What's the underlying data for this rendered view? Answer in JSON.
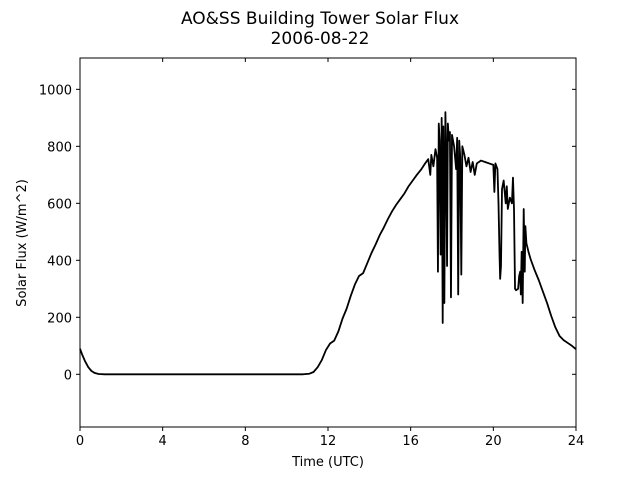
{
  "chart_data": {
    "type": "line",
    "title": "AO&SS Building Tower Solar Flux",
    "subtitle": "2006-08-22",
    "xlabel": "Time (UTC)",
    "ylabel": "Solar Flux (W/m^2)",
    "xlim": [
      0,
      24
    ],
    "ylim": [
      -185,
      1110
    ],
    "xticks": [
      0,
      4,
      8,
      12,
      16,
      20,
      24
    ],
    "yticks": [
      0,
      200,
      400,
      600,
      800,
      1000
    ],
    "grid": false,
    "series": [
      {
        "color": "#000000",
        "points": [
          [
            0,
            90
          ],
          [
            0.1,
            70
          ],
          [
            0.25,
            45
          ],
          [
            0.4,
            25
          ],
          [
            0.55,
            12
          ],
          [
            0.7,
            5
          ],
          [
            0.9,
            1
          ],
          [
            1.2,
            0
          ],
          [
            4,
            0
          ],
          [
            8,
            0
          ],
          [
            10.8,
            0
          ],
          [
            11.1,
            2
          ],
          [
            11.3,
            8
          ],
          [
            11.5,
            25
          ],
          [
            11.7,
            50
          ],
          [
            11.9,
            85
          ],
          [
            12.1,
            108
          ],
          [
            12.3,
            118
          ],
          [
            12.5,
            150
          ],
          [
            12.7,
            195
          ],
          [
            12.9,
            230
          ],
          [
            13.1,
            275
          ],
          [
            13.3,
            315
          ],
          [
            13.5,
            345
          ],
          [
            13.7,
            355
          ],
          [
            13.9,
            390
          ],
          [
            14.1,
            425
          ],
          [
            14.3,
            455
          ],
          [
            14.5,
            488
          ],
          [
            14.7,
            515
          ],
          [
            14.9,
            545
          ],
          [
            15.1,
            572
          ],
          [
            15.3,
            595
          ],
          [
            15.5,
            615
          ],
          [
            15.7,
            635
          ],
          [
            15.9,
            660
          ],
          [
            16.1,
            680
          ],
          [
            16.3,
            700
          ],
          [
            16.5,
            718
          ],
          [
            16.7,
            740
          ],
          [
            16.85,
            755
          ],
          [
            16.95,
            700
          ],
          [
            17.0,
            770
          ],
          [
            17.1,
            730
          ],
          [
            17.2,
            790
          ],
          [
            17.28,
            760
          ],
          [
            17.32,
            360
          ],
          [
            17.36,
            880
          ],
          [
            17.4,
            820
          ],
          [
            17.45,
            420
          ],
          [
            17.5,
            900
          ],
          [
            17.55,
            180
          ],
          [
            17.58,
            870
          ],
          [
            17.63,
            250
          ],
          [
            17.68,
            920
          ],
          [
            17.72,
            780
          ],
          [
            17.76,
            380
          ],
          [
            17.8,
            880
          ],
          [
            17.85,
            820
          ],
          [
            17.9,
            850
          ],
          [
            17.95,
            270
          ],
          [
            18.0,
            840
          ],
          [
            18.1,
            800
          ],
          [
            18.2,
            720
          ],
          [
            18.25,
            830
          ],
          [
            18.3,
            280
          ],
          [
            18.35,
            820
          ],
          [
            18.4,
            760
          ],
          [
            18.45,
            350
          ],
          [
            18.5,
            800
          ],
          [
            18.6,
            770
          ],
          [
            18.7,
            730
          ],
          [
            18.8,
            760
          ],
          [
            18.9,
            710
          ],
          [
            19.0,
            745
          ],
          [
            19.1,
            700
          ],
          [
            19.2,
            740
          ],
          [
            19.4,
            750
          ],
          [
            19.6,
            745
          ],
          [
            19.8,
            740
          ],
          [
            20.0,
            735
          ],
          [
            20.05,
            640
          ],
          [
            20.1,
            740
          ],
          [
            20.2,
            720
          ],
          [
            20.25,
            600
          ],
          [
            20.3,
            420
          ],
          [
            20.33,
            335
          ],
          [
            20.37,
            380
          ],
          [
            20.42,
            650
          ],
          [
            20.5,
            680
          ],
          [
            20.55,
            640
          ],
          [
            20.6,
            600
          ],
          [
            20.65,
            660
          ],
          [
            20.7,
            580
          ],
          [
            20.8,
            620
          ],
          [
            20.9,
            600
          ],
          [
            20.95,
            690
          ],
          [
            21.0,
            580
          ],
          [
            21.05,
            300
          ],
          [
            21.1,
            295
          ],
          [
            21.2,
            300
          ],
          [
            21.25,
            345
          ],
          [
            21.3,
            360
          ],
          [
            21.33,
            280
          ],
          [
            21.37,
            430
          ],
          [
            21.42,
            250
          ],
          [
            21.47,
            580
          ],
          [
            21.52,
            360
          ],
          [
            21.55,
            520
          ],
          [
            21.6,
            460
          ],
          [
            21.7,
            430
          ],
          [
            21.8,
            405
          ],
          [
            22.0,
            365
          ],
          [
            22.2,
            330
          ],
          [
            22.4,
            290
          ],
          [
            22.6,
            250
          ],
          [
            22.8,
            205
          ],
          [
            23.0,
            165
          ],
          [
            23.2,
            135
          ],
          [
            23.4,
            120
          ],
          [
            23.6,
            110
          ],
          [
            23.8,
            100
          ],
          [
            24.0,
            88
          ]
        ]
      }
    ]
  }
}
